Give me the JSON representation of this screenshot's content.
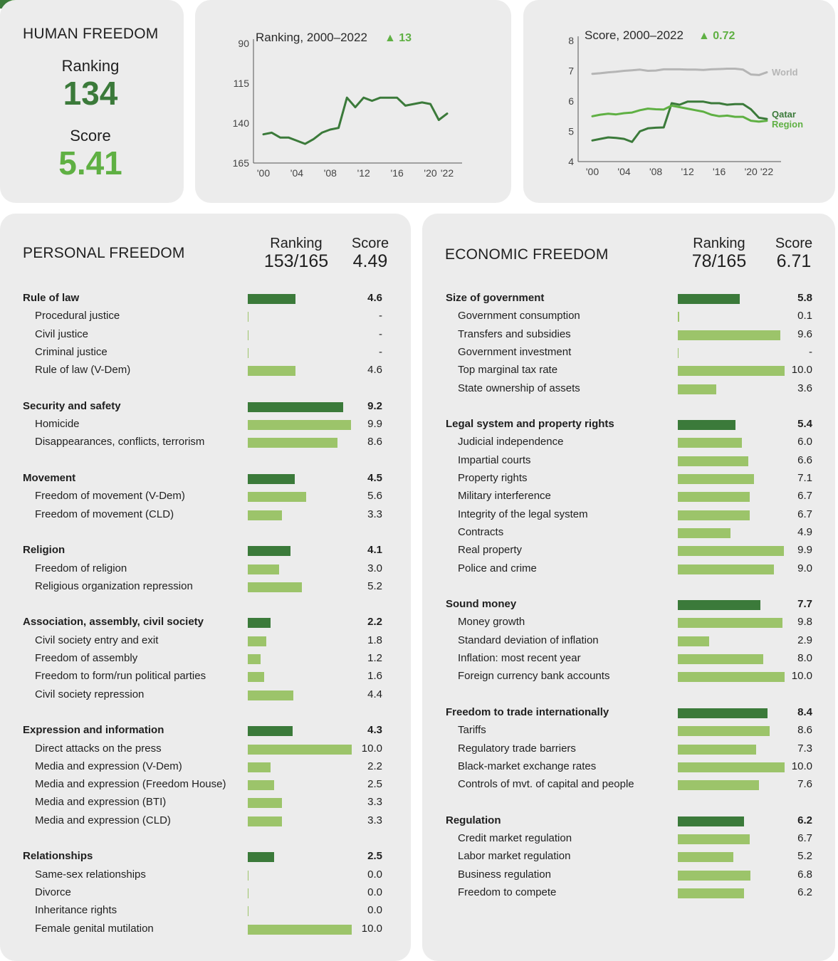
{
  "colors": {
    "dark_green": "#3b7a3a",
    "light_green": "#9cc46a",
    "bright_green": "#5fb043",
    "world_gray": "#b5b5b5",
    "card_bg": "#ececec",
    "stripe": [
      "#3b7a3a",
      "#5fb043",
      "#9cc46a",
      "#d6e8b0"
    ]
  },
  "human_freedom": {
    "title": "HUMAN FREEDOM",
    "ranking_label": "Ranking",
    "ranking_value": "134",
    "score_label": "Score",
    "score_value": "5.41"
  },
  "chart_data": [
    {
      "type": "line",
      "title": "Ranking, 2000–2022",
      "change": "▲ 13",
      "x": [
        2000,
        2001,
        2002,
        2003,
        2004,
        2005,
        2006,
        2007,
        2008,
        2009,
        2010,
        2011,
        2012,
        2013,
        2014,
        2015,
        2016,
        2017,
        2018,
        2019,
        2020,
        2021,
        2022
      ],
      "x_ticks": [
        "'00",
        "'04",
        "'08",
        "'12",
        "'16",
        "'20",
        "'22"
      ],
      "x_tick_values": [
        2000,
        2004,
        2008,
        2012,
        2016,
        2020,
        2022
      ],
      "y_ticks": [
        "90",
        "115",
        "140",
        "165"
      ],
      "y_tick_values": [
        90,
        115,
        140,
        165
      ],
      "ylim": [
        165,
        90
      ],
      "y_inverted": true,
      "series": [
        {
          "color": "#3b7a3a",
          "values": [
            147,
            146,
            149,
            149,
            151,
            153,
            150,
            146,
            144,
            143,
            124,
            130,
            124,
            126,
            124,
            124,
            124,
            129,
            128,
            127,
            128,
            138,
            134
          ]
        }
      ]
    },
    {
      "type": "line",
      "title": "Score, 2000–2022",
      "change": "▲ 0.72",
      "x": [
        2000,
        2001,
        2002,
        2003,
        2004,
        2005,
        2006,
        2007,
        2008,
        2009,
        2010,
        2011,
        2012,
        2013,
        2014,
        2015,
        2016,
        2017,
        2018,
        2019,
        2020,
        2021,
        2022
      ],
      "x_ticks": [
        "'00",
        "'04",
        "'08",
        "'12",
        "'16",
        "'20",
        "'22"
      ],
      "x_tick_values": [
        2000,
        2004,
        2008,
        2012,
        2016,
        2020,
        2022
      ],
      "y_ticks": [
        "8",
        "7",
        "6",
        "5",
        "4"
      ],
      "y_tick_values": [
        8,
        7,
        6,
        5,
        4
      ],
      "ylim": [
        4,
        8
      ],
      "series": [
        {
          "name": "World",
          "color": "#b5b5b5",
          "values": [
            6.9,
            6.92,
            6.95,
            6.97,
            7.0,
            7.02,
            7.04,
            7.0,
            7.01,
            7.05,
            7.05,
            7.05,
            7.04,
            7.04,
            7.03,
            7.05,
            7.06,
            7.07,
            7.07,
            7.04,
            6.88,
            6.86,
            6.95
          ]
        },
        {
          "name": "Qatar",
          "color": "#3b7a3a",
          "values": [
            4.7,
            4.75,
            4.8,
            4.78,
            4.75,
            4.65,
            5.0,
            5.1,
            5.12,
            5.13,
            5.93,
            5.88,
            5.98,
            5.98,
            5.98,
            5.93,
            5.93,
            5.88,
            5.9,
            5.9,
            5.73,
            5.45,
            5.41
          ]
        },
        {
          "name": "Region",
          "color": "#5fb043",
          "values": [
            5.5,
            5.55,
            5.58,
            5.56,
            5.6,
            5.62,
            5.7,
            5.75,
            5.73,
            5.72,
            5.85,
            5.8,
            5.75,
            5.7,
            5.65,
            5.55,
            5.5,
            5.52,
            5.48,
            5.48,
            5.35,
            5.32,
            5.35
          ]
        }
      ]
    }
  ],
  "personal": {
    "title": "PERSONAL FREEDOM",
    "ranking_label": "Ranking",
    "ranking_value": "153/165",
    "score_label": "Score",
    "score_value": "4.49",
    "rows": [
      {
        "label": "Rule of law",
        "value": 4.6,
        "text": "4.6",
        "category": true
      },
      {
        "label": "Procedural justice",
        "value": 0,
        "text": "-",
        "category": false
      },
      {
        "label": "Civil justice",
        "value": 0,
        "text": "-",
        "category": false
      },
      {
        "label": "Criminal justice",
        "value": 0,
        "text": "-",
        "category": false
      },
      {
        "label": "Rule of law (V-Dem)",
        "value": 4.6,
        "text": "4.6",
        "category": false
      },
      {
        "label": "Security and safety",
        "value": 9.2,
        "text": "9.2",
        "category": true
      },
      {
        "label": "Homicide",
        "value": 9.9,
        "text": "9.9",
        "category": false
      },
      {
        "label": "Disappearances, conflicts, terrorism",
        "value": 8.6,
        "text": "8.6",
        "category": false
      },
      {
        "label": "Movement",
        "value": 4.5,
        "text": "4.5",
        "category": true
      },
      {
        "label": "Freedom of movement (V-Dem)",
        "value": 5.6,
        "text": "5.6",
        "category": false
      },
      {
        "label": "Freedom of movement (CLD)",
        "value": 3.3,
        "text": "3.3",
        "category": false
      },
      {
        "label": "Religion",
        "value": 4.1,
        "text": "4.1",
        "category": true
      },
      {
        "label": "Freedom of religion",
        "value": 3.0,
        "text": "3.0",
        "category": false
      },
      {
        "label": "Religious organization repression",
        "value": 5.2,
        "text": "5.2",
        "category": false
      },
      {
        "label": "Association, assembly, civil society",
        "value": 2.2,
        "text": "2.2",
        "category": true
      },
      {
        "label": "Civil society entry and exit",
        "value": 1.8,
        "text": "1.8",
        "category": false
      },
      {
        "label": "Freedom of assembly",
        "value": 1.2,
        "text": "1.2",
        "category": false
      },
      {
        "label": "Freedom to form/run political parties",
        "value": 1.6,
        "text": "1.6",
        "category": false
      },
      {
        "label": "Civil society repression",
        "value": 4.4,
        "text": "4.4",
        "category": false
      },
      {
        "label": "Expression and information",
        "value": 4.3,
        "text": "4.3",
        "category": true
      },
      {
        "label": "Direct attacks on the press",
        "value": 10.0,
        "text": "10.0",
        "category": false
      },
      {
        "label": "Media and expression (V-Dem)",
        "value": 2.2,
        "text": "2.2",
        "category": false
      },
      {
        "label": "Media and expression (Freedom House)",
        "value": 2.5,
        "text": "2.5",
        "category": false
      },
      {
        "label": "Media and expression (BTI)",
        "value": 3.3,
        "text": "3.3",
        "category": false
      },
      {
        "label": "Media and expression (CLD)",
        "value": 3.3,
        "text": "3.3",
        "category": false
      },
      {
        "label": "Relationships",
        "value": 2.5,
        "text": "2.5",
        "category": true
      },
      {
        "label": "Same-sex relationships",
        "value": 0.0,
        "text": "0.0",
        "category": false
      },
      {
        "label": "Divorce",
        "value": 0.0,
        "text": "0.0",
        "category": false
      },
      {
        "label": "Inheritance rights",
        "value": 0.0,
        "text": "0.0",
        "category": false
      },
      {
        "label": "Female genital mutilation",
        "value": 10.0,
        "text": "10.0",
        "category": false
      }
    ]
  },
  "economic": {
    "title": "ECONOMIC FREEDOM",
    "ranking_label": "Ranking",
    "ranking_value": "78/165",
    "score_label": "Score",
    "score_value": "6.71",
    "rows": [
      {
        "label": "Size of government",
        "value": 5.8,
        "text": "5.8",
        "category": true
      },
      {
        "label": "Government consumption",
        "value": 0.1,
        "text": "0.1",
        "category": false
      },
      {
        "label": "Transfers and subsidies",
        "value": 9.6,
        "text": "9.6",
        "category": false
      },
      {
        "label": "Government investment",
        "value": 0,
        "text": "-",
        "category": false
      },
      {
        "label": "Top marginal tax rate",
        "value": 10.0,
        "text": "10.0",
        "category": false
      },
      {
        "label": "State ownership of assets",
        "value": 3.6,
        "text": "3.6",
        "category": false
      },
      {
        "label": "Legal system and property rights",
        "value": 5.4,
        "text": "5.4",
        "category": true
      },
      {
        "label": "Judicial independence",
        "value": 6.0,
        "text": "6.0",
        "category": false
      },
      {
        "label": "Impartial courts",
        "value": 6.6,
        "text": "6.6",
        "category": false
      },
      {
        "label": "Property rights",
        "value": 7.1,
        "text": "7.1",
        "category": false
      },
      {
        "label": "Military interference",
        "value": 6.7,
        "text": "6.7",
        "category": false
      },
      {
        "label": "Integrity of the legal system",
        "value": 6.7,
        "text": "6.7",
        "category": false
      },
      {
        "label": "Contracts",
        "value": 4.9,
        "text": "4.9",
        "category": false
      },
      {
        "label": "Real property",
        "value": 9.9,
        "text": "9.9",
        "category": false
      },
      {
        "label": "Police and crime",
        "value": 9.0,
        "text": "9.0",
        "category": false
      },
      {
        "label": "Sound money",
        "value": 7.7,
        "text": "7.7",
        "category": true
      },
      {
        "label": "Money growth",
        "value": 9.8,
        "text": "9.8",
        "category": false
      },
      {
        "label": "Standard deviation of inflation",
        "value": 2.9,
        "text": "2.9",
        "category": false
      },
      {
        "label": "Inflation: most recent year",
        "value": 8.0,
        "text": "8.0",
        "category": false
      },
      {
        "label": "Foreign currency bank accounts",
        "value": 10.0,
        "text": "10.0",
        "category": false
      },
      {
        "label": "Freedom to trade internationally",
        "value": 8.4,
        "text": "8.4",
        "category": true
      },
      {
        "label": "Tariffs",
        "value": 8.6,
        "text": "8.6",
        "category": false
      },
      {
        "label": "Regulatory trade barriers",
        "value": 7.3,
        "text": "7.3",
        "category": false
      },
      {
        "label": "Black-market exchange rates",
        "value": 10.0,
        "text": "10.0",
        "category": false
      },
      {
        "label": "Controls of mvt. of capital and people",
        "value": 7.6,
        "text": "7.6",
        "category": false
      },
      {
        "label": "Regulation",
        "value": 6.2,
        "text": "6.2",
        "category": true
      },
      {
        "label": "Credit market regulation",
        "value": 6.7,
        "text": "6.7",
        "category": false
      },
      {
        "label": "Labor market regulation",
        "value": 5.2,
        "text": "5.2",
        "category": false
      },
      {
        "label": "Business regulation",
        "value": 6.8,
        "text": "6.8",
        "category": false
      },
      {
        "label": "Freedom to compete",
        "value": 6.2,
        "text": "6.2",
        "category": false
      }
    ]
  }
}
